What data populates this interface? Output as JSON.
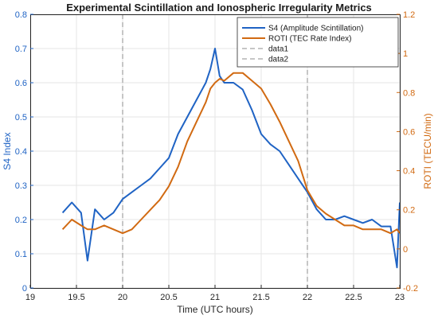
{
  "chart_data": {
    "type": "line",
    "title": "Experimental Scintillation and Ionospheric Irregularity Metrics",
    "xlabel": "Time (UTC hours)",
    "ylabel_left": "S4 Index",
    "ylabel_right": "ROTI (TECU/min)",
    "xlim": [
      19,
      23
    ],
    "ylim_left": [
      0,
      0.8
    ],
    "ylim_right": [
      -0.2,
      1.2
    ],
    "x_ticks": [
      "19",
      "19.5",
      "20",
      "20.5",
      "21",
      "21.5",
      "22",
      "22.5",
      "23"
    ],
    "y_left_ticks": [
      "0",
      "0.1",
      "0.2",
      "0.3",
      "0.4",
      "0.5",
      "0.6",
      "0.7",
      "0.8"
    ],
    "y_right_ticks": [
      "-0.2",
      "0",
      "0.2",
      "0.4",
      "0.6",
      "0.8",
      "1",
      "1.2"
    ],
    "grid": true,
    "legend_position": "top-right",
    "vlines": [
      {
        "name": "data1",
        "x": 20
      },
      {
        "name": "data2",
        "x": 22
      }
    ],
    "series": [
      {
        "name": "S4 (Amplitude Scintillation)",
        "axis": "left",
        "color": "#1f63c4",
        "x": [
          19.35,
          19.45,
          19.55,
          19.62,
          19.7,
          19.8,
          19.9,
          20.0,
          20.1,
          20.2,
          20.3,
          20.4,
          20.5,
          20.6,
          20.7,
          20.8,
          20.9,
          20.95,
          21.0,
          21.05,
          21.1,
          21.2,
          21.3,
          21.4,
          21.5,
          21.6,
          21.7,
          21.8,
          21.9,
          22.0,
          22.1,
          22.2,
          22.3,
          22.4,
          22.5,
          22.6,
          22.7,
          22.8,
          22.9,
          22.97,
          23.0
        ],
        "values": [
          0.22,
          0.25,
          0.22,
          0.08,
          0.23,
          0.2,
          0.22,
          0.26,
          0.28,
          0.3,
          0.32,
          0.35,
          0.38,
          0.45,
          0.5,
          0.55,
          0.6,
          0.64,
          0.7,
          0.62,
          0.6,
          0.6,
          0.58,
          0.52,
          0.45,
          0.42,
          0.4,
          0.36,
          0.32,
          0.28,
          0.23,
          0.2,
          0.2,
          0.21,
          0.2,
          0.19,
          0.2,
          0.18,
          0.18,
          0.06,
          0.25
        ]
      },
      {
        "name": "ROTI (TEC Rate Index)",
        "axis": "right",
        "color": "#d16a12",
        "x": [
          19.35,
          19.45,
          19.55,
          19.62,
          19.7,
          19.8,
          19.9,
          20.0,
          20.1,
          20.2,
          20.3,
          20.4,
          20.5,
          20.6,
          20.7,
          20.8,
          20.9,
          20.95,
          21.0,
          21.05,
          21.1,
          21.2,
          21.3,
          21.4,
          21.5,
          21.6,
          21.7,
          21.8,
          21.9,
          22.0,
          22.1,
          22.2,
          22.3,
          22.4,
          22.5,
          22.6,
          22.7,
          22.8,
          22.9,
          22.97,
          23.0
        ],
        "values": [
          0.1,
          0.15,
          0.12,
          0.1,
          0.1,
          0.12,
          0.1,
          0.08,
          0.1,
          0.15,
          0.2,
          0.25,
          0.32,
          0.42,
          0.55,
          0.65,
          0.75,
          0.82,
          0.85,
          0.87,
          0.86,
          0.9,
          0.9,
          0.86,
          0.82,
          0.74,
          0.65,
          0.55,
          0.45,
          0.3,
          0.22,
          0.18,
          0.15,
          0.12,
          0.12,
          0.1,
          0.1,
          0.1,
          0.08,
          0.1,
          0.08
        ]
      }
    ]
  }
}
